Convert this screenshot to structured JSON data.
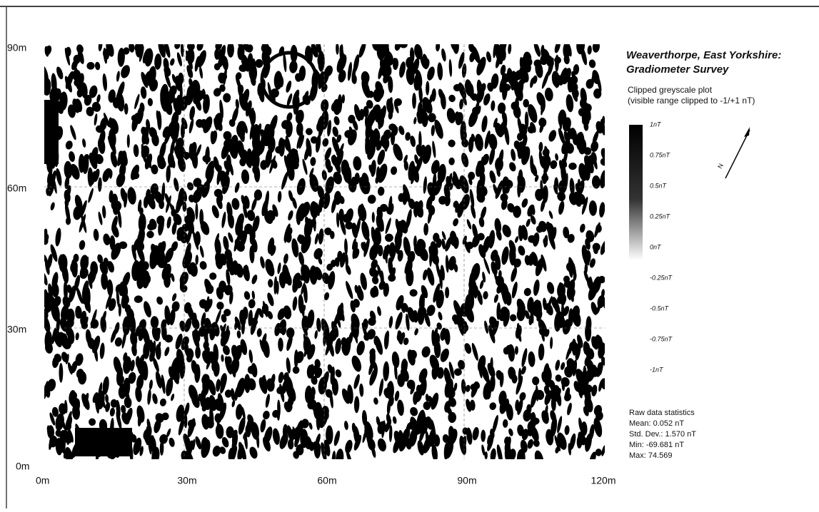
{
  "title": [
    "Weaverthorpe, East Yorkshire:",
    "Gradiometer Survey"
  ],
  "subtitle": [
    "Clipped greyscale plot",
    "(visible range clipped to -1/+1 nT)"
  ],
  "y_axis_labels": [
    "90m",
    "60m",
    "30m",
    "0m"
  ],
  "x_axis_labels": [
    "0m",
    "30m",
    "60m",
    "90m",
    "120m"
  ],
  "legend_labels": [
    "1nT",
    "0.75nT",
    "0.5nT",
    "0.25nT",
    "0nT",
    "-0.25nT",
    "-0.5nT",
    "-0.75nT",
    "-1nT"
  ],
  "north_label": "N",
  "statistics": {
    "heading": "Raw data statistics",
    "lines": [
      "Mean: 0.052 nT",
      "Std. Dev.: 1.570 nT",
      "Min: -69.681 nT",
      "Max: 74.569"
    ]
  }
}
